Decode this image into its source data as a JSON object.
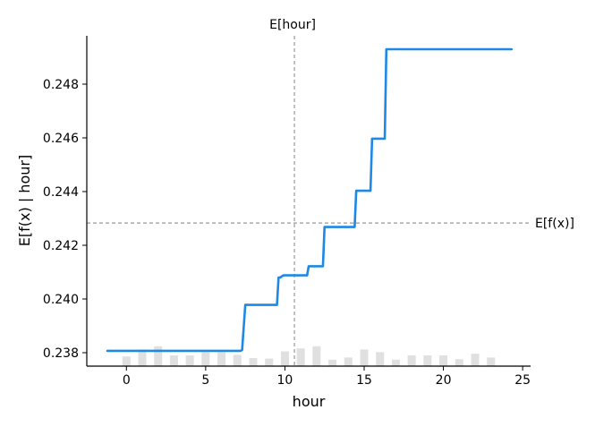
{
  "chart_data": {
    "type": "line",
    "title": "",
    "xlabel": "hour",
    "ylabel": "E[f(x) | hour]",
    "xlim": [
      -2.5,
      25.5
    ],
    "ylim": [
      0.2375,
      0.2498
    ],
    "x_ticks": [
      0,
      5,
      10,
      15,
      20,
      25
    ],
    "y_ticks": [
      0.238,
      0.24,
      0.242,
      0.244,
      0.246,
      0.248
    ],
    "x_tick_labels": [
      "0",
      "5",
      "10",
      "15",
      "20",
      "25"
    ],
    "y_tick_labels": [
      "0.238",
      "0.240",
      "0.242",
      "0.244",
      "0.246",
      "0.248"
    ],
    "grid": false,
    "expected_value_line": {
      "label": "E[f(x)]",
      "y": 0.24283
    },
    "expected_feature_line": {
      "label": "E[hour]",
      "x": 10.6
    },
    "series": [
      {
        "color": "#1e88e5",
        "x": [
          -1.2,
          7.2,
          7.3,
          7.5,
          9.5,
          9.6,
          9.7,
          9.9,
          10.0,
          11.4,
          11.5,
          12.4,
          12.5,
          12.6,
          14.4,
          14.5,
          14.6,
          15.4,
          15.5,
          15.6,
          16.3,
          16.4,
          16.5,
          24.3
        ],
        "y": [
          0.23807,
          0.23807,
          0.2381,
          0.23978,
          0.23978,
          0.2408,
          0.2408,
          0.24088,
          0.24088,
          0.24088,
          0.24122,
          0.24122,
          0.24268,
          0.24268,
          0.24268,
          0.24403,
          0.24403,
          0.24403,
          0.24597,
          0.24597,
          0.24597,
          0.2493,
          0.2493,
          0.2493
        ]
      }
    ],
    "histogram": {
      "color": "#e0e0e0",
      "x": [
        0,
        1,
        2,
        3,
        4,
        5,
        6,
        7,
        8,
        9,
        10,
        11,
        12,
        13,
        14,
        15,
        16,
        17,
        18,
        19,
        20,
        21,
        22,
        23
      ],
      "relative_height": [
        0.36,
        0.62,
        0.74,
        0.4,
        0.4,
        0.52,
        0.52,
        0.42,
        0.3,
        0.28,
        0.55,
        0.66,
        0.74,
        0.24,
        0.32,
        0.62,
        0.52,
        0.24,
        0.4,
        0.4,
        0.4,
        0.26,
        0.46,
        0.32
      ]
    }
  }
}
